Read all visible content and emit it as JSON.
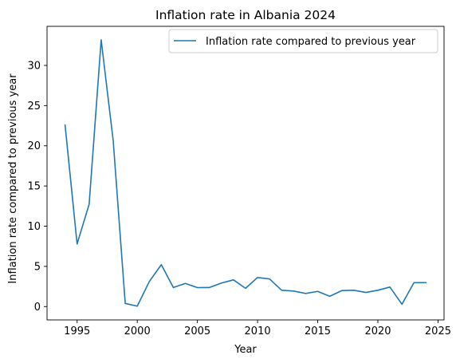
{
  "chart_data": {
    "type": "line",
    "title": "Inflation rate in Albania 2024",
    "xlabel": "Year",
    "ylabel": "Inflation rate compared to previous year",
    "xlim": [
      1992.5,
      2025.5
    ],
    "ylim": [
      -1.66,
      34.86
    ],
    "xticks": [
      1995,
      2000,
      2005,
      2010,
      2015,
      2020,
      2025
    ],
    "yticks": [
      0,
      5,
      10,
      15,
      20,
      25,
      30
    ],
    "grid": false,
    "legend_position": "top-right",
    "colors": {
      "series": "#1f77b4"
    },
    "series": [
      {
        "name": "Inflation rate compared to previous year",
        "x": [
          1994,
          1995,
          1996,
          1997,
          1998,
          1999,
          2000,
          2001,
          2002,
          2003,
          2004,
          2005,
          2006,
          2007,
          2008,
          2009,
          2010,
          2011,
          2012,
          2013,
          2014,
          2015,
          2016,
          2017,
          2018,
          2019,
          2020,
          2021,
          2022,
          2023,
          2024
        ],
        "y": [
          22.57,
          7.79,
          12.73,
          33.18,
          20.64,
          0.39,
          0.05,
          3.11,
          5.21,
          2.37,
          2.88,
          2.36,
          2.37,
          2.93,
          3.32,
          2.27,
          3.62,
          3.43,
          2.03,
          1.93,
          1.63,
          1.89,
          1.28,
          1.99,
          2.03,
          1.76,
          2.03,
          2.43,
          0.29,
          2.98,
          2.98
        ]
      }
    ]
  }
}
